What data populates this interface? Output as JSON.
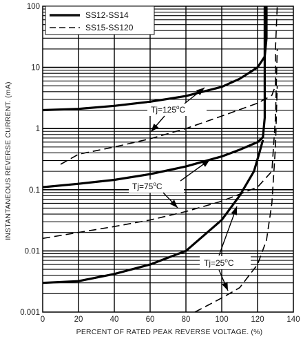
{
  "chart_data": {
    "type": "line",
    "title": "",
    "xlabel": "PERCENT OF RATED PEAK REVERSE VOLTAGE. (%)",
    "ylabel": "INSTANTANEOUS REVERSE CURRENT. (mA)",
    "x_ticks": [
      0,
      20,
      40,
      60,
      80,
      100,
      120,
      140
    ],
    "xlim": [
      0,
      140
    ],
    "y_scale": "log",
    "ylim": [
      0.001,
      100
    ],
    "y_tick_labels": [
      "0.001",
      "0.01",
      "0.1",
      "1",
      "10",
      "100"
    ],
    "grid": true,
    "legend_position": "top-left",
    "legend": [
      {
        "label": "SS12-SS14",
        "style": "solid"
      },
      {
        "label": "SS15-SS120",
        "style": "dashed"
      }
    ],
    "series": [
      {
        "name": "SS12-SS14",
        "group": "Tj=125",
        "style": "solid",
        "points": [
          [
            0,
            2.0
          ],
          [
            20,
            2.1
          ],
          [
            40,
            2.35
          ],
          [
            60,
            2.75
          ],
          [
            80,
            3.4
          ],
          [
            100,
            4.8
          ],
          [
            110,
            6.5
          ],
          [
            120,
            10
          ],
          [
            124,
            15
          ],
          [
            125,
            30
          ],
          [
            125,
            100
          ]
        ]
      },
      {
        "name": "SS15-SS120",
        "group": "Tj=125",
        "style": "dashed",
        "points": [
          [
            10,
            0.26
          ],
          [
            20,
            0.38
          ],
          [
            40,
            0.5
          ],
          [
            60,
            0.68
          ],
          [
            80,
            1.0
          ],
          [
            100,
            1.6
          ],
          [
            120,
            2.6
          ],
          [
            128,
            3.5
          ],
          [
            130,
            5
          ],
          [
            130,
            20
          ],
          [
            131,
            100
          ]
        ]
      },
      {
        "name": "SS12-SS14",
        "group": "Tj=75",
        "style": "solid",
        "points": [
          [
            0,
            0.11
          ],
          [
            20,
            0.125
          ],
          [
            40,
            0.145
          ],
          [
            60,
            0.18
          ],
          [
            80,
            0.24
          ],
          [
            100,
            0.35
          ],
          [
            110,
            0.45
          ],
          [
            120,
            0.6
          ],
          [
            123,
            0.72
          ],
          [
            124,
            1.5
          ],
          [
            124,
            100
          ]
        ]
      },
      {
        "name": "SS15-SS120",
        "group": "Tj=75",
        "style": "dashed",
        "points": [
          [
            0,
            0.016
          ],
          [
            20,
            0.02
          ],
          [
            40,
            0.025
          ],
          [
            60,
            0.032
          ],
          [
            80,
            0.044
          ],
          [
            100,
            0.065
          ],
          [
            120,
            0.11
          ],
          [
            128,
            0.2
          ],
          [
            130,
            1.5
          ],
          [
            131,
            20
          ]
        ]
      },
      {
        "name": "SS12-SS14",
        "group": "Tj=25",
        "style": "solid",
        "points": [
          [
            0,
            0.003
          ],
          [
            20,
            0.0032
          ],
          [
            40,
            0.0042
          ],
          [
            60,
            0.006
          ],
          [
            80,
            0.01
          ],
          [
            100,
            0.032
          ],
          [
            110,
            0.08
          ],
          [
            118,
            0.2
          ],
          [
            121,
            0.4
          ],
          [
            123,
            0.65
          ]
        ]
      },
      {
        "name": "SS15-SS120",
        "group": "Tj=25",
        "style": "dashed",
        "points": [
          [
            85,
            0.001
          ],
          [
            100,
            0.0017
          ],
          [
            110,
            0.0025
          ],
          [
            120,
            0.006
          ],
          [
            125,
            0.015
          ],
          [
            128,
            0.06
          ],
          [
            130,
            0.5
          ],
          [
            131,
            5
          ]
        ]
      }
    ],
    "annotations": [
      {
        "label": "Tj=125",
        "unit": "C"
      },
      {
        "label": "Tj=75",
        "unit": "C"
      },
      {
        "label": "Tj=25",
        "unit": "C"
      }
    ]
  }
}
